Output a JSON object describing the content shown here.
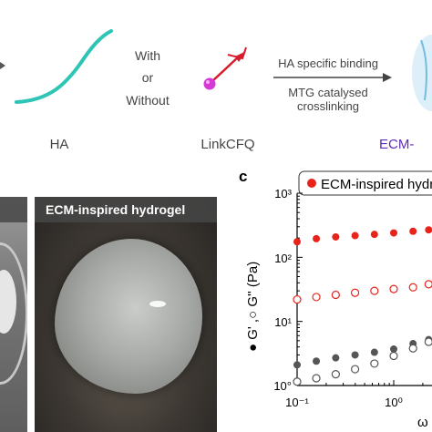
{
  "schematic": {
    "ha_label": "HA",
    "with_or_without": [
      "With",
      "or",
      "Without"
    ],
    "linker_label": "LinkCFQ",
    "arrow_top_text": "HA specific binding",
    "arrow_bottom_text": [
      "MTG catalysed",
      "crosslinking"
    ],
    "product_label": "ECM-"
  },
  "photos": {
    "right_title": "ECM-inspired hydrogel"
  },
  "panel_c": {
    "panel_letter": "c",
    "legend_text": "ECM-inspired hydr",
    "ylabel": "● G' ,○ G'' (Pa)",
    "xlabel_partial": "ω (",
    "y_tick_labels": [
      "10°",
      "10¹",
      "10²",
      "10³"
    ],
    "x_tick_labels": [
      "10⁻¹",
      "10⁰"
    ],
    "colors": {
      "storage": "#e8231a",
      "loss": "#e8231a",
      "dark": "#555555"
    }
  },
  "chart_data": {
    "type": "scatter",
    "title": "",
    "xlabel": "ω (",
    "ylabel": "G' ,G'' (Pa)",
    "xscale": "log",
    "yscale": "log",
    "xlim": [
      0.1,
      2.5
    ],
    "ylim": [
      1,
      1000
    ],
    "legend": "top",
    "series": [
      {
        "name": "ECM-inspired hydr",
        "marker": "filled",
        "color": "#e8231a",
        "x": [
          0.1,
          0.158,
          0.251,
          0.398,
          0.631,
          1.0,
          1.585,
          2.3
        ],
        "y": [
          175,
          195,
          208,
          218,
          228,
          240,
          255,
          268
        ]
      },
      {
        "marker": "open",
        "color": "#e8231a",
        "x": [
          0.1,
          0.158,
          0.251,
          0.398,
          0.631,
          1.0,
          1.585,
          2.3
        ],
        "y": [
          22,
          24,
          26,
          28,
          30,
          32,
          34,
          38
        ]
      },
      {
        "marker": "filled",
        "color": "#555555",
        "x": [
          0.1,
          0.158,
          0.251,
          0.398,
          0.631,
          1.0,
          1.585,
          2.3
        ],
        "y": [
          2.1,
          2.4,
          2.7,
          3.0,
          3.3,
          3.7,
          4.5,
          5.2
        ]
      },
      {
        "marker": "open",
        "color": "#555555",
        "x": [
          0.1,
          0.158,
          0.251,
          0.398,
          0.631,
          1.0,
          1.585,
          2.3
        ],
        "y": [
          1.15,
          1.3,
          1.5,
          1.8,
          2.2,
          2.9,
          3.8,
          4.8
        ]
      }
    ]
  }
}
